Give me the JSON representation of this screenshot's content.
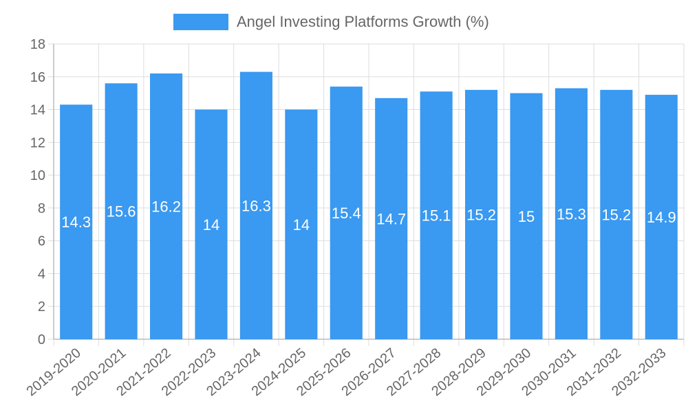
{
  "chart_data": {
    "type": "bar",
    "title": "",
    "xlabel": "",
    "ylabel": "",
    "ylim": [
      0,
      18
    ],
    "yticks": [
      0,
      2,
      4,
      6,
      8,
      10,
      12,
      14,
      16,
      18
    ],
    "grid": true,
    "legend_position": "top-center",
    "categories": [
      "2019-2020",
      "2020-2021",
      "2021-2022",
      "2022-2023",
      "2023-2024",
      "2024-2025",
      "2025-2026",
      "2026-2027",
      "2027-2028",
      "2028-2029",
      "2029-2030",
      "2030-2031",
      "2031-2032",
      "2032-2033"
    ],
    "series": [
      {
        "name": "Angel Investing Platforms Growth (%)",
        "color": "#3a99f0",
        "values": [
          14.3,
          15.6,
          16.2,
          14,
          16.3,
          14,
          15.4,
          14.7,
          15.1,
          15.2,
          15,
          15.3,
          15.2,
          14.9
        ]
      }
    ]
  }
}
